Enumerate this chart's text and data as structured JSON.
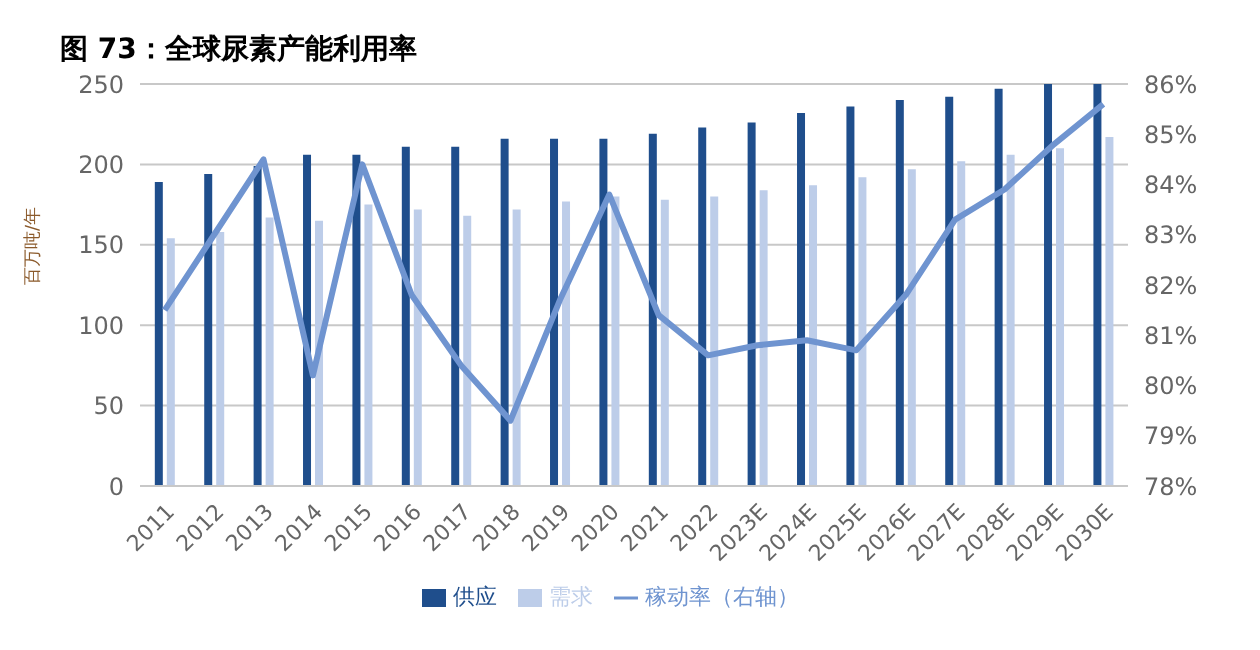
{
  "chart_data": {
    "type": "bar",
    "title": "图 73：全球尿素产能利用率",
    "ylabel": "百万吨/年",
    "categories": [
      "2011",
      "2012",
      "2013",
      "2014",
      "2015",
      "2016",
      "2017",
      "2018",
      "2019",
      "2020",
      "2021",
      "2022",
      "2023E",
      "2024E",
      "2025E",
      "2026E",
      "2027E",
      "2028E",
      "2029E",
      "2030E"
    ],
    "series": [
      {
        "name": "供应",
        "color": "#1f4e8c",
        "values": [
          189,
          194,
          199,
          206,
          206,
          211,
          211,
          216,
          216,
          216,
          219,
          223,
          226,
          232,
          236,
          240,
          242,
          247,
          250,
          250
        ]
      },
      {
        "name": "需求",
        "color": "#bdcde9",
        "values": [
          154,
          158,
          167,
          165,
          175,
          172,
          168,
          172,
          177,
          180,
          178,
          180,
          184,
          187,
          192,
          197,
          202,
          206,
          210,
          217
        ]
      },
      {
        "name": "稼动率（右轴）",
        "type": "line",
        "axis": "y2",
        "color": "#6f94d0",
        "values": [
          81.5,
          83.0,
          84.5,
          80.2,
          84.4,
          81.8,
          80.4,
          79.3,
          81.7,
          83.8,
          81.4,
          80.6,
          80.8,
          80.9,
          80.7,
          81.8,
          83.3,
          83.9,
          84.8,
          85.6
        ]
      }
    ],
    "ylim": [
      0,
      250
    ],
    "yticks": [
      0,
      50,
      100,
      150,
      200,
      250
    ],
    "y2lim": [
      78,
      86
    ],
    "y2ticks": [
      {
        "value": 78,
        "label": "78%"
      },
      {
        "value": 79,
        "label": "79%"
      },
      {
        "value": 80,
        "label": "80%"
      },
      {
        "value": 81,
        "label": "81%"
      },
      {
        "value": 82,
        "label": "82%"
      },
      {
        "value": 83,
        "label": "83%"
      },
      {
        "value": 84,
        "label": "84%"
      },
      {
        "value": 85,
        "label": "85%"
      },
      {
        "value": 86,
        "label": "86%"
      }
    ],
    "grid": "y",
    "legend": "bottom",
    "marker": "none"
  }
}
